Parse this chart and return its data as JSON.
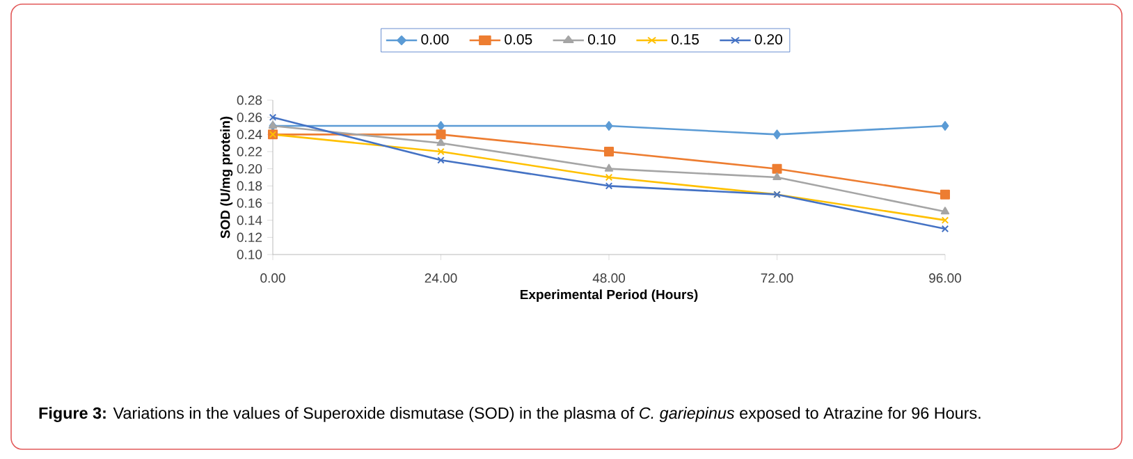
{
  "chart_data": {
    "type": "line",
    "xlabel": "Experimental Period (Hours)",
    "ylabel": "SOD (U/mg protein)",
    "x": [
      0,
      24,
      48,
      72,
      96
    ],
    "xlim": [
      0,
      96
    ],
    "xticks": [
      {
        "value": 0,
        "label": "0.00"
      },
      {
        "value": 24,
        "label": "24.00"
      },
      {
        "value": 48,
        "label": "48.00"
      },
      {
        "value": 72,
        "label": "72.00"
      },
      {
        "value": 96,
        "label": "96.00"
      }
    ],
    "ylim": [
      0.1,
      0.28
    ],
    "yticks": [
      {
        "value": 0.1,
        "label": "0.10"
      },
      {
        "value": 0.12,
        "label": "0.12"
      },
      {
        "value": 0.14,
        "label": "0.14"
      },
      {
        "value": 0.16,
        "label": "0.16"
      },
      {
        "value": 0.18,
        "label": "0.18"
      },
      {
        "value": 0.2,
        "label": "0.20"
      },
      {
        "value": 0.22,
        "label": "0.22"
      },
      {
        "value": 0.24,
        "label": "0.24"
      },
      {
        "value": 0.26,
        "label": "0.26"
      },
      {
        "value": 0.28,
        "label": "0.28"
      }
    ],
    "series": [
      {
        "name": "0.00",
        "color": "#5b9bd5",
        "marker": "diamond",
        "values": [
          0.25,
          0.25,
          0.25,
          0.24,
          0.25
        ]
      },
      {
        "name": "0.05",
        "color": "#ed7d31",
        "marker": "square",
        "values": [
          0.24,
          0.24,
          0.22,
          0.2,
          0.17
        ]
      },
      {
        "name": "0.10",
        "color": "#a5a5a5",
        "marker": "triangle",
        "values": [
          0.25,
          0.23,
          0.2,
          0.19,
          0.15
        ]
      },
      {
        "name": "0.15",
        "color": "#ffc000",
        "marker": "cross",
        "values": [
          0.24,
          0.22,
          0.19,
          0.17,
          0.14
        ]
      },
      {
        "name": "0.20",
        "color": "#4472c4",
        "marker": "cross",
        "values": [
          0.26,
          0.21,
          0.18,
          0.17,
          0.13
        ]
      }
    ],
    "line_style": "solid",
    "grid": false,
    "legend": "top",
    "annotations": [
      "**Figure 3:** Variations in the values of Superoxide dismutase (SOD) in the plasma of *C. gariepinus* exposed to Atrazine for 96 Hours."
    ]
  }
}
